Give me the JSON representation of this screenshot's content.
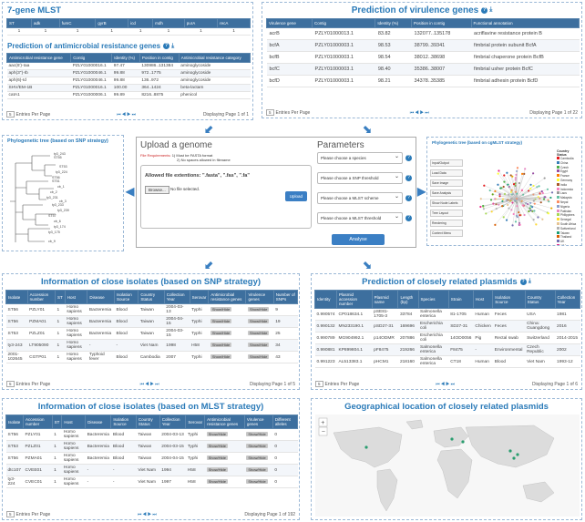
{
  "mlst": {
    "title": "7-gene MLST",
    "headers": [
      "ST",
      "adk",
      "fumC",
      "gyrB",
      "icd",
      "mdh",
      "purA",
      "recA"
    ],
    "row": [
      "1",
      "1",
      "1",
      "1",
      "1",
      "1",
      "1",
      "1"
    ]
  },
  "amr": {
    "title": "Prediction of antimicrobial resistance genes",
    "headers": [
      "Antimicrobial resistance gene",
      "Contig",
      "Identity (%)",
      "Position in contig",
      "Antimicrobial resistance category"
    ],
    "rows": [
      [
        "aac(6')-Iaa",
        "PZLY01000016.1",
        "97.47",
        "130986..131384",
        "aminoglycoside"
      ],
      [
        "aph(3'')-Ib",
        "PZLY01000046.1",
        "99.88",
        "972..1775",
        "aminoglycoside"
      ],
      [
        "aph(6)-Id",
        "PZLY01000046.1",
        "99.88",
        "136..972",
        "aminoglycoside"
      ],
      [
        "SHV/EM-1B",
        "PZLY01000016.1",
        "100.00",
        "364..1424",
        "beta-lactam"
      ],
      [
        "catA1",
        "PZLY01000006.1",
        "99.89",
        "8216..8875",
        "phenicol"
      ]
    ],
    "entries": "5",
    "entries_label": "Entries Per Page",
    "display": "Displaying Page 1 of 1"
  },
  "virulence": {
    "title": "Prediction of virulence genes",
    "headers": [
      "Virulence gene",
      "Contig",
      "Identity (%)",
      "Position in contig",
      "Functional annotation"
    ],
    "rows": [
      [
        "acrB",
        "PZLY01000013.1",
        "83.82",
        "132077..135178",
        "acriflavine resistance protein B"
      ],
      [
        "bcfA",
        "PZLY01000003.1",
        "98.53",
        "38799..39341",
        "fimbrial protein subunit BcfA"
      ],
      [
        "bcfB",
        "PZLY01000003.1",
        "98.54",
        "38012..38698",
        "fimbrial chaperone protein BcfB"
      ],
      [
        "bcfC",
        "PZLY01000003.1",
        "98.40",
        "35386..38007",
        "fimbrial usher protein BcfC"
      ],
      [
        "bcfD",
        "PZLY01000003.1",
        "98.21",
        "34378..35385",
        "fimbrial adhesin protein BcfD"
      ]
    ],
    "entries": "5",
    "entries_label": "Entries Per Page",
    "display": "Displaying Page 1 of 22"
  },
  "snp_tree": {
    "title": "Phylogenetic tree (based on SNP strategy)",
    "labels": [
      "ty3_243",
      "ST55",
      "ST53",
      "ty3_224",
      "ST56",
      "ST51",
      "cb_1",
      "cb_2",
      "ty3_231",
      "cb_3",
      "ty3_233",
      "ty3_239",
      "ST57",
      "cb_6",
      "ty3_174",
      "ty3_175",
      "cb_9"
    ]
  },
  "upload": {
    "title": "Upload a genome",
    "req_label": "File Requirements:",
    "req1": "1) Must be FASTA format",
    "req2": "2) No spaces allowed in filename",
    "allowed_label": "Allowed file extentions: \".fasta\", \".fas\", \".fa\"",
    "browse": "Browse...",
    "no_file": "No file selected.",
    "upload_btn": "Upload"
  },
  "params": {
    "title": "Parameters",
    "selects": [
      "Please choose a species",
      "Please choose a SNP threshold",
      "Please choose a MLST scheme",
      "Please choose a MLST threshold"
    ],
    "analyse": "Analyse"
  },
  "cgmlst_tree": {
    "title": "Phylogenetic tree (based on cgMLST strategy)",
    "legend_title": "Country Status",
    "legend": [
      {
        "label": "Cambodia",
        "color": "#e41a1c"
      },
      {
        "label": "China",
        "color": "#377eb8"
      },
      {
        "label": "Czech",
        "color": "#4daf4a"
      },
      {
        "label": "Egypt",
        "color": "#984ea3"
      },
      {
        "label": "France",
        "color": "#ff7f00"
      },
      {
        "label": "Germany",
        "color": "#ffff33"
      },
      {
        "label": "India",
        "color": "#a65628"
      },
      {
        "label": "Indonesia",
        "color": "#f781bf"
      },
      {
        "label": "Laos",
        "color": "#999999"
      },
      {
        "label": "Malaysia",
        "color": "#66c2a5"
      },
      {
        "label": "Nepal",
        "color": "#fc8d62"
      },
      {
        "label": "Nigeria",
        "color": "#8da0cb"
      },
      {
        "label": "Pakistan",
        "color": "#e78ac3"
      },
      {
        "label": "Philippines",
        "color": "#a6d854"
      },
      {
        "label": "Senegal",
        "color": "#ffd92f"
      },
      {
        "label": "South Africa",
        "color": "#e5c494"
      },
      {
        "label": "Switzerland",
        "color": "#b3b3b3"
      },
      {
        "label": "Taiwan",
        "color": "#1b9e77"
      },
      {
        "label": "Thailand",
        "color": "#d95f02"
      },
      {
        "label": "UK",
        "color": "#7570b3"
      },
      {
        "label": "USA",
        "color": "#e7298a"
      },
      {
        "label": "Viet Nam",
        "color": "#66a61e"
      },
      {
        "label": "Unknown",
        "color": "#e6ab02"
      }
    ],
    "ctrl": [
      "Input/Output",
      "Load Data",
      "Save Image",
      "Save Analysis",
      "Show Node Labels",
      "Tree Layout",
      "Rendering",
      "Context Menu"
    ]
  },
  "snp_isolates": {
    "title": "Information of close isolates (based on SNP strategy)",
    "headers": [
      "Isolate",
      "Accession number",
      "ST",
      "Host",
      "Disease",
      "Isolation Source",
      "Country Status",
      "Collection Year",
      "Serovar",
      "Antimicrobial resistance genes",
      "Virulence genes",
      "Number of SNPs"
    ],
    "rows": [
      [
        "ST56",
        "PZLY01",
        "1",
        "Homo sapiens",
        "Bacteremia",
        "Blood",
        "Taiwan",
        "2004-03-13",
        "Typhi",
        "Show/Hide",
        "Show/Hide",
        "9"
      ],
      [
        "ST56",
        "PZMA01",
        "1",
        "Homo sapiens",
        "Bacteremia",
        "Blood",
        "Taiwan",
        "2004-04-15",
        "Typhi",
        "Show/Hide",
        "Show/Hide",
        "19"
      ],
      [
        "ST53",
        "PZLZ01",
        "1",
        "Homo sapiens",
        "Bacteremia",
        "Blood",
        "Taiwan",
        "2004-03-15",
        "Typhi",
        "Show/Hide",
        "Show/Hide",
        "25"
      ],
      [
        "ty3-243",
        "LT905090",
        "1",
        "Homo sapiens",
        "-",
        "-",
        "Viet Nam",
        "1998",
        "H58",
        "Show/Hide",
        "Show/Hide",
        "34"
      ],
      [
        "2001-102645",
        "CGTP01",
        "1",
        "Homo sapiens",
        "Typhoid fever",
        "Blood",
        "Cambodia",
        "2007",
        "Typhi",
        "Show/Hide",
        "Show/Hide",
        "43"
      ]
    ],
    "entries": "5",
    "entries_label": "Entries Per Page",
    "display": "Displaying Page 1 of 5"
  },
  "plasmids": {
    "title": "Prediction of closely related plasmids",
    "headers": [
      "Identity",
      "Plasmid accession number",
      "Plasmid name",
      "Length (bp)",
      "Species",
      "Strain",
      "Host",
      "Isolation Source",
      "Country Status",
      "Collection Year"
    ],
    "rows": [
      [
        "0.990574",
        "CP018634.1",
        "pSE81-1705-3",
        "33784",
        "Salmonella enterica",
        "81-1705",
        "Human",
        "Feces",
        "USA",
        "1981"
      ],
      [
        "0.990132",
        "MN233190.1",
        "pSD27-31",
        "169696",
        "Escherichia coli",
        "SD27-31",
        "Chicken",
        "Feces",
        "China: Guangdong",
        "2016"
      ],
      [
        "0.990789",
        "MG904992.1",
        "p14ODMR",
        "207886",
        "Escherichia coli",
        "14OD0056",
        "Pig",
        "Rectal swab",
        "Switzerland",
        "2014-2015"
      ],
      [
        "0.990881",
        "KP899804.1",
        "pF8475",
        "219266",
        "Salmonella enterica",
        "F8475",
        "-",
        "Environmental",
        "Czech Republic",
        "2002"
      ],
      [
        "0.991223",
        "AL513383.1",
        "pHCM1",
        "218160",
        "Salmonella enterica",
        "CT18",
        "Human",
        "Blood",
        "Viet Nam",
        "1993-12"
      ]
    ],
    "entries": "5",
    "entries_label": "Entries Per Page",
    "display": "Displaying Page 1 of 6"
  },
  "mlst_isolates": {
    "title": "Information of close isolates (based on MLST strategy)",
    "headers": [
      "Isolate",
      "Accession number",
      "ST",
      "Host",
      "Disease",
      "Isolation Source",
      "Country Status",
      "Collection Year",
      "Serovar",
      "Antimicrobial resistance genes",
      "Virulence genes",
      "Different alleles"
    ],
    "rows": [
      [
        "ST56",
        "PZLY01",
        "1",
        "Homo sapiens",
        "Bacteremia",
        "Blood",
        "Taiwan",
        "2004-03-13",
        "Typhi",
        "Show/Hide",
        "Show/Hide",
        "0"
      ],
      [
        "ST53",
        "PZLZ01",
        "1",
        "Homo sapiens",
        "Bacteremia",
        "Blood",
        "Taiwan",
        "2004-03-15",
        "Typhi",
        "Show/Hide",
        "Show/Hide",
        "0"
      ],
      [
        "ST56",
        "PZMA01",
        "1",
        "Homo sapiens",
        "Bacteremia",
        "Blood",
        "Taiwan",
        "2004-04-15",
        "Typhi",
        "Show/Hide",
        "Show/Hide",
        "0"
      ],
      [
        "dtc107",
        "CVEE01",
        "1",
        "Homo sapiens",
        "-",
        "-",
        "Viet Nam",
        "1994",
        "H58",
        "Show/Hide",
        "Show/Hide",
        "0"
      ],
      [
        "ty3-224",
        "CVEC01",
        "1",
        "Homo sapiens",
        "-",
        "-",
        "Viet Nam",
        "1997",
        "H58",
        "Show/Hide",
        "Show/Hide",
        "0"
      ]
    ],
    "entries": "5",
    "entries_label": "Entries Per Page",
    "display": "Displaying Page 1 of 192"
  },
  "geo": {
    "title": "Geographical location of closely related plasmids"
  }
}
